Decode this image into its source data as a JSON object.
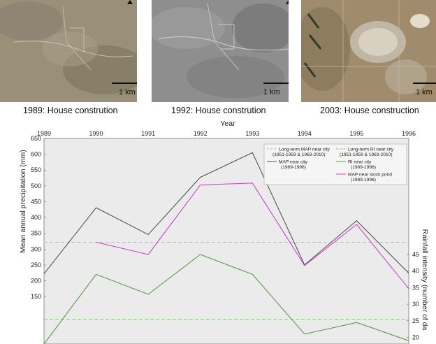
{
  "panels": [
    {
      "caption": "1989: House constrution",
      "scale_label": "1 km"
    },
    {
      "caption": "1992: House constrution",
      "scale_label": "1 km"
    },
    {
      "caption": "2003: House construction",
      "scale_label": "1 km"
    }
  ],
  "chart_data": {
    "type": "line",
    "xlabel": "Year",
    "ylabel_left": "Mean annual precipitation (mm)",
    "ylabel_right": "Rainfall intensity (number of da",
    "x_ticks": [
      1989,
      1990,
      1991,
      1992,
      1993,
      1994,
      1995,
      1996
    ],
    "xlim": [
      1989,
      1996
    ],
    "ylim_left": [
      0,
      650
    ],
    "y_ticks_left": [
      150,
      200,
      250,
      300,
      350,
      400,
      450,
      500,
      550,
      600,
      650
    ],
    "ylim_right": [
      18,
      80
    ],
    "y_ticks_right": [
      20,
      25,
      30,
      35,
      40,
      45
    ],
    "grid": false,
    "legend_position": "top-right",
    "series": [
      {
        "name": "Long-term MAP near city",
        "detail": "(1951-1959 & 1963-2010)",
        "axis": "left",
        "style": "dashed",
        "color": "#b8b8b8",
        "x": [
          1989,
          1996
        ],
        "values": [
          322,
          322
        ]
      },
      {
        "name": "MAP near city",
        "detail": "(1989-1996)",
        "axis": "left",
        "style": "solid",
        "color": "#555555",
        "x": [
          1989,
          1990,
          1991,
          1992,
          1993,
          1994,
          1995,
          1996
        ],
        "values": [
          222,
          431,
          346,
          527,
          605,
          250,
          390,
          224
        ]
      },
      {
        "name": "MAP near stock pond",
        "detail": "(1989-1996)",
        "axis": "left",
        "style": "solid",
        "color": "#cc44cc",
        "x": [
          1990,
          1991,
          1992,
          1993,
          1994,
          1995,
          1996
        ],
        "values": [
          322,
          283,
          503,
          509,
          248,
          378,
          175
        ]
      },
      {
        "name": "Long-term RI near city",
        "detail": "(1951-1959 & 1963-2010)",
        "axis": "right",
        "style": "dashed",
        "color": "#66dd55",
        "x": [
          1989,
          1996
        ],
        "values": [
          25.5,
          25.5
        ]
      },
      {
        "name": "RI near city",
        "detail": "(1989-1996)",
        "axis": "right",
        "style": "solid",
        "color": "#5a9a4e",
        "x": [
          1989,
          1990,
          1991,
          1992,
          1993,
          1994,
          1995,
          1996
        ],
        "values": [
          18,
          39,
          33,
          45,
          39,
          21,
          24.5,
          19
        ]
      }
    ]
  }
}
